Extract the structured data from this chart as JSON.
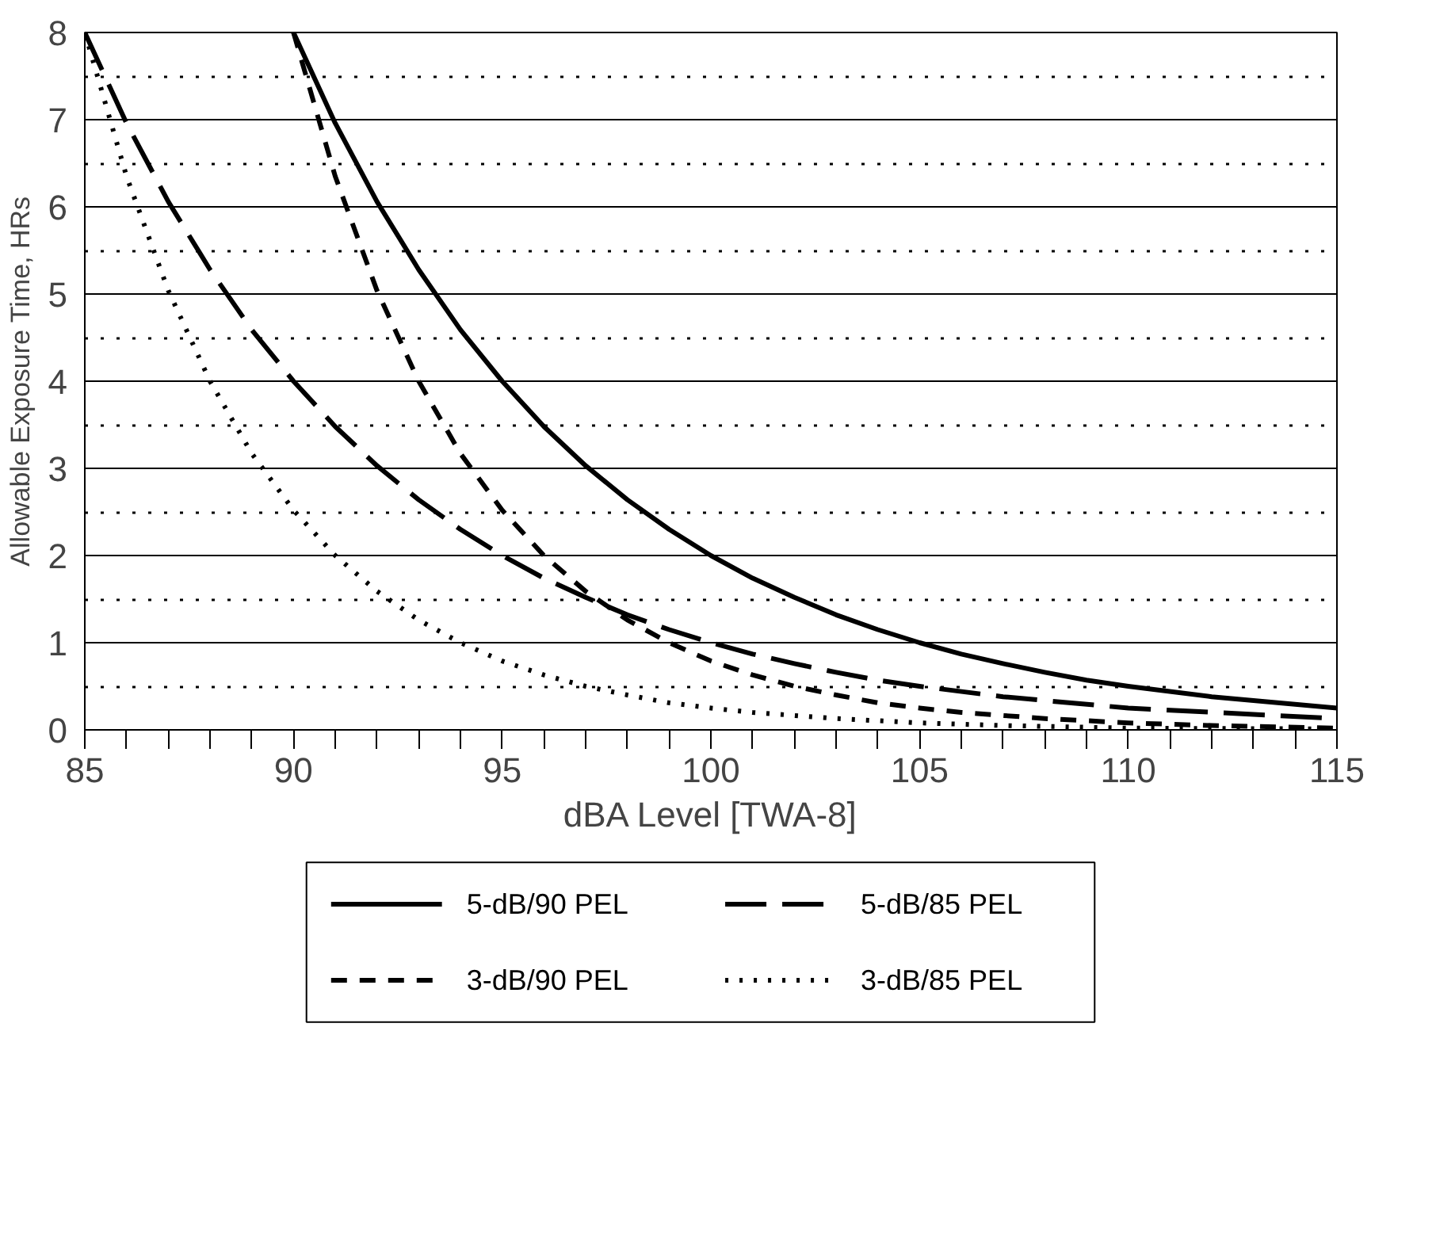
{
  "chart_data": {
    "type": "line",
    "xlabel": "dBA Level [TWA-8]",
    "ylabel": "Allowable Exposure Time, HRs",
    "xlim": [
      85,
      115
    ],
    "ylim": [
      0,
      8
    ],
    "xticks": [
      85,
      {
        "value": 86,
        "label": null
      },
      {
        "value": 87,
        "label": null
      },
      {
        "value": 88,
        "label": null
      },
      {
        "value": 89,
        "label": null
      },
      90,
      {
        "value": 91,
        "label": null
      },
      {
        "value": 92,
        "label": null
      },
      {
        "value": 93,
        "label": null
      },
      {
        "value": 94,
        "label": null
      },
      95,
      {
        "value": 96,
        "label": null
      },
      {
        "value": 97,
        "label": null
      },
      {
        "value": 98,
        "label": null
      },
      {
        "value": 99,
        "label": null
      },
      100,
      {
        "value": 101,
        "label": null
      },
      {
        "value": 102,
        "label": null
      },
      {
        "value": 103,
        "label": null
      },
      {
        "value": 104,
        "label": null
      },
      105,
      {
        "value": 106,
        "label": null
      },
      {
        "value": 107,
        "label": null
      },
      {
        "value": 108,
        "label": null
      },
      {
        "value": 109,
        "label": null
      },
      110,
      {
        "value": 111,
        "label": null
      },
      {
        "value": 112,
        "label": null
      },
      {
        "value": 113,
        "label": null
      },
      {
        "value": 114,
        "label": null
      },
      115
    ],
    "yticks": [
      0,
      {
        "value": 0.5,
        "label": null
      },
      1,
      {
        "value": 1.5,
        "label": null
      },
      2,
      {
        "value": 2.5,
        "label": null
      },
      3,
      {
        "value": 3.5,
        "label": null
      },
      4,
      {
        "value": 4.5,
        "label": null
      },
      5,
      {
        "value": 5.5,
        "label": null
      },
      6,
      {
        "value": 6.5,
        "label": null
      },
      7,
      {
        "value": 7.5,
        "label": null
      },
      8
    ],
    "grid": "y",
    "legend": "bottom",
    "series": [
      {
        "name": "5-dB/90 PEL",
        "color": "#000000",
        "line_style": "solid",
        "x": [
          90,
          91,
          92,
          93,
          94,
          95,
          96,
          97,
          98,
          99,
          100,
          101,
          102,
          103,
          104,
          105,
          106,
          107,
          108,
          109,
          110,
          112,
          115
        ],
        "values": [
          8,
          6.96,
          6.06,
          5.28,
          4.59,
          4,
          3.48,
          3.03,
          2.64,
          2.3,
          2,
          1.74,
          1.52,
          1.32,
          1.15,
          1,
          0.87,
          0.76,
          0.66,
          0.57,
          0.5,
          0.38,
          0.25
        ]
      },
      {
        "name": "5-dB/85 PEL",
        "color": "#000000",
        "line_style": "longdash",
        "x": [
          85,
          86,
          87,
          88,
          89,
          90,
          91,
          92,
          93,
          94,
          95,
          96,
          97,
          98,
          99,
          100,
          101,
          102,
          103,
          104,
          105,
          107,
          110,
          115
        ],
        "values": [
          8,
          6.96,
          6.06,
          5.28,
          4.59,
          4,
          3.48,
          3.03,
          2.64,
          2.3,
          2,
          1.74,
          1.52,
          1.32,
          1.15,
          1,
          0.87,
          0.76,
          0.66,
          0.57,
          0.5,
          0.38,
          0.25,
          0.13
        ]
      },
      {
        "name": "3-dB/90 PEL",
        "color": "#000000",
        "line_style": "dashed",
        "x": [
          90,
          91,
          92,
          93,
          94,
          95,
          96,
          97,
          98,
          99,
          100,
          101,
          102,
          103,
          104,
          105,
          106,
          108,
          110,
          112,
          115
        ],
        "values": [
          8,
          6.35,
          5.04,
          4,
          3.17,
          2.52,
          2,
          1.59,
          1.26,
          1,
          0.79,
          0.63,
          0.5,
          0.4,
          0.31,
          0.25,
          0.2,
          0.13,
          0.08,
          0.05,
          0.02
        ]
      },
      {
        "name": "3-dB/85 PEL",
        "color": "#000000",
        "line_style": "dotted",
        "x": [
          85,
          86,
          87,
          88,
          89,
          90,
          91,
          92,
          93,
          94,
          95,
          96,
          97,
          98,
          99,
          100,
          101,
          103,
          105,
          107,
          110,
          115
        ],
        "values": [
          8,
          6.35,
          5.04,
          4,
          3.17,
          2.52,
          2,
          1.59,
          1.26,
          1,
          0.79,
          0.63,
          0.5,
          0.4,
          0.31,
          0.25,
          0.2,
          0.13,
          0.08,
          0.05,
          0.02,
          0.01
        ]
      }
    ]
  }
}
